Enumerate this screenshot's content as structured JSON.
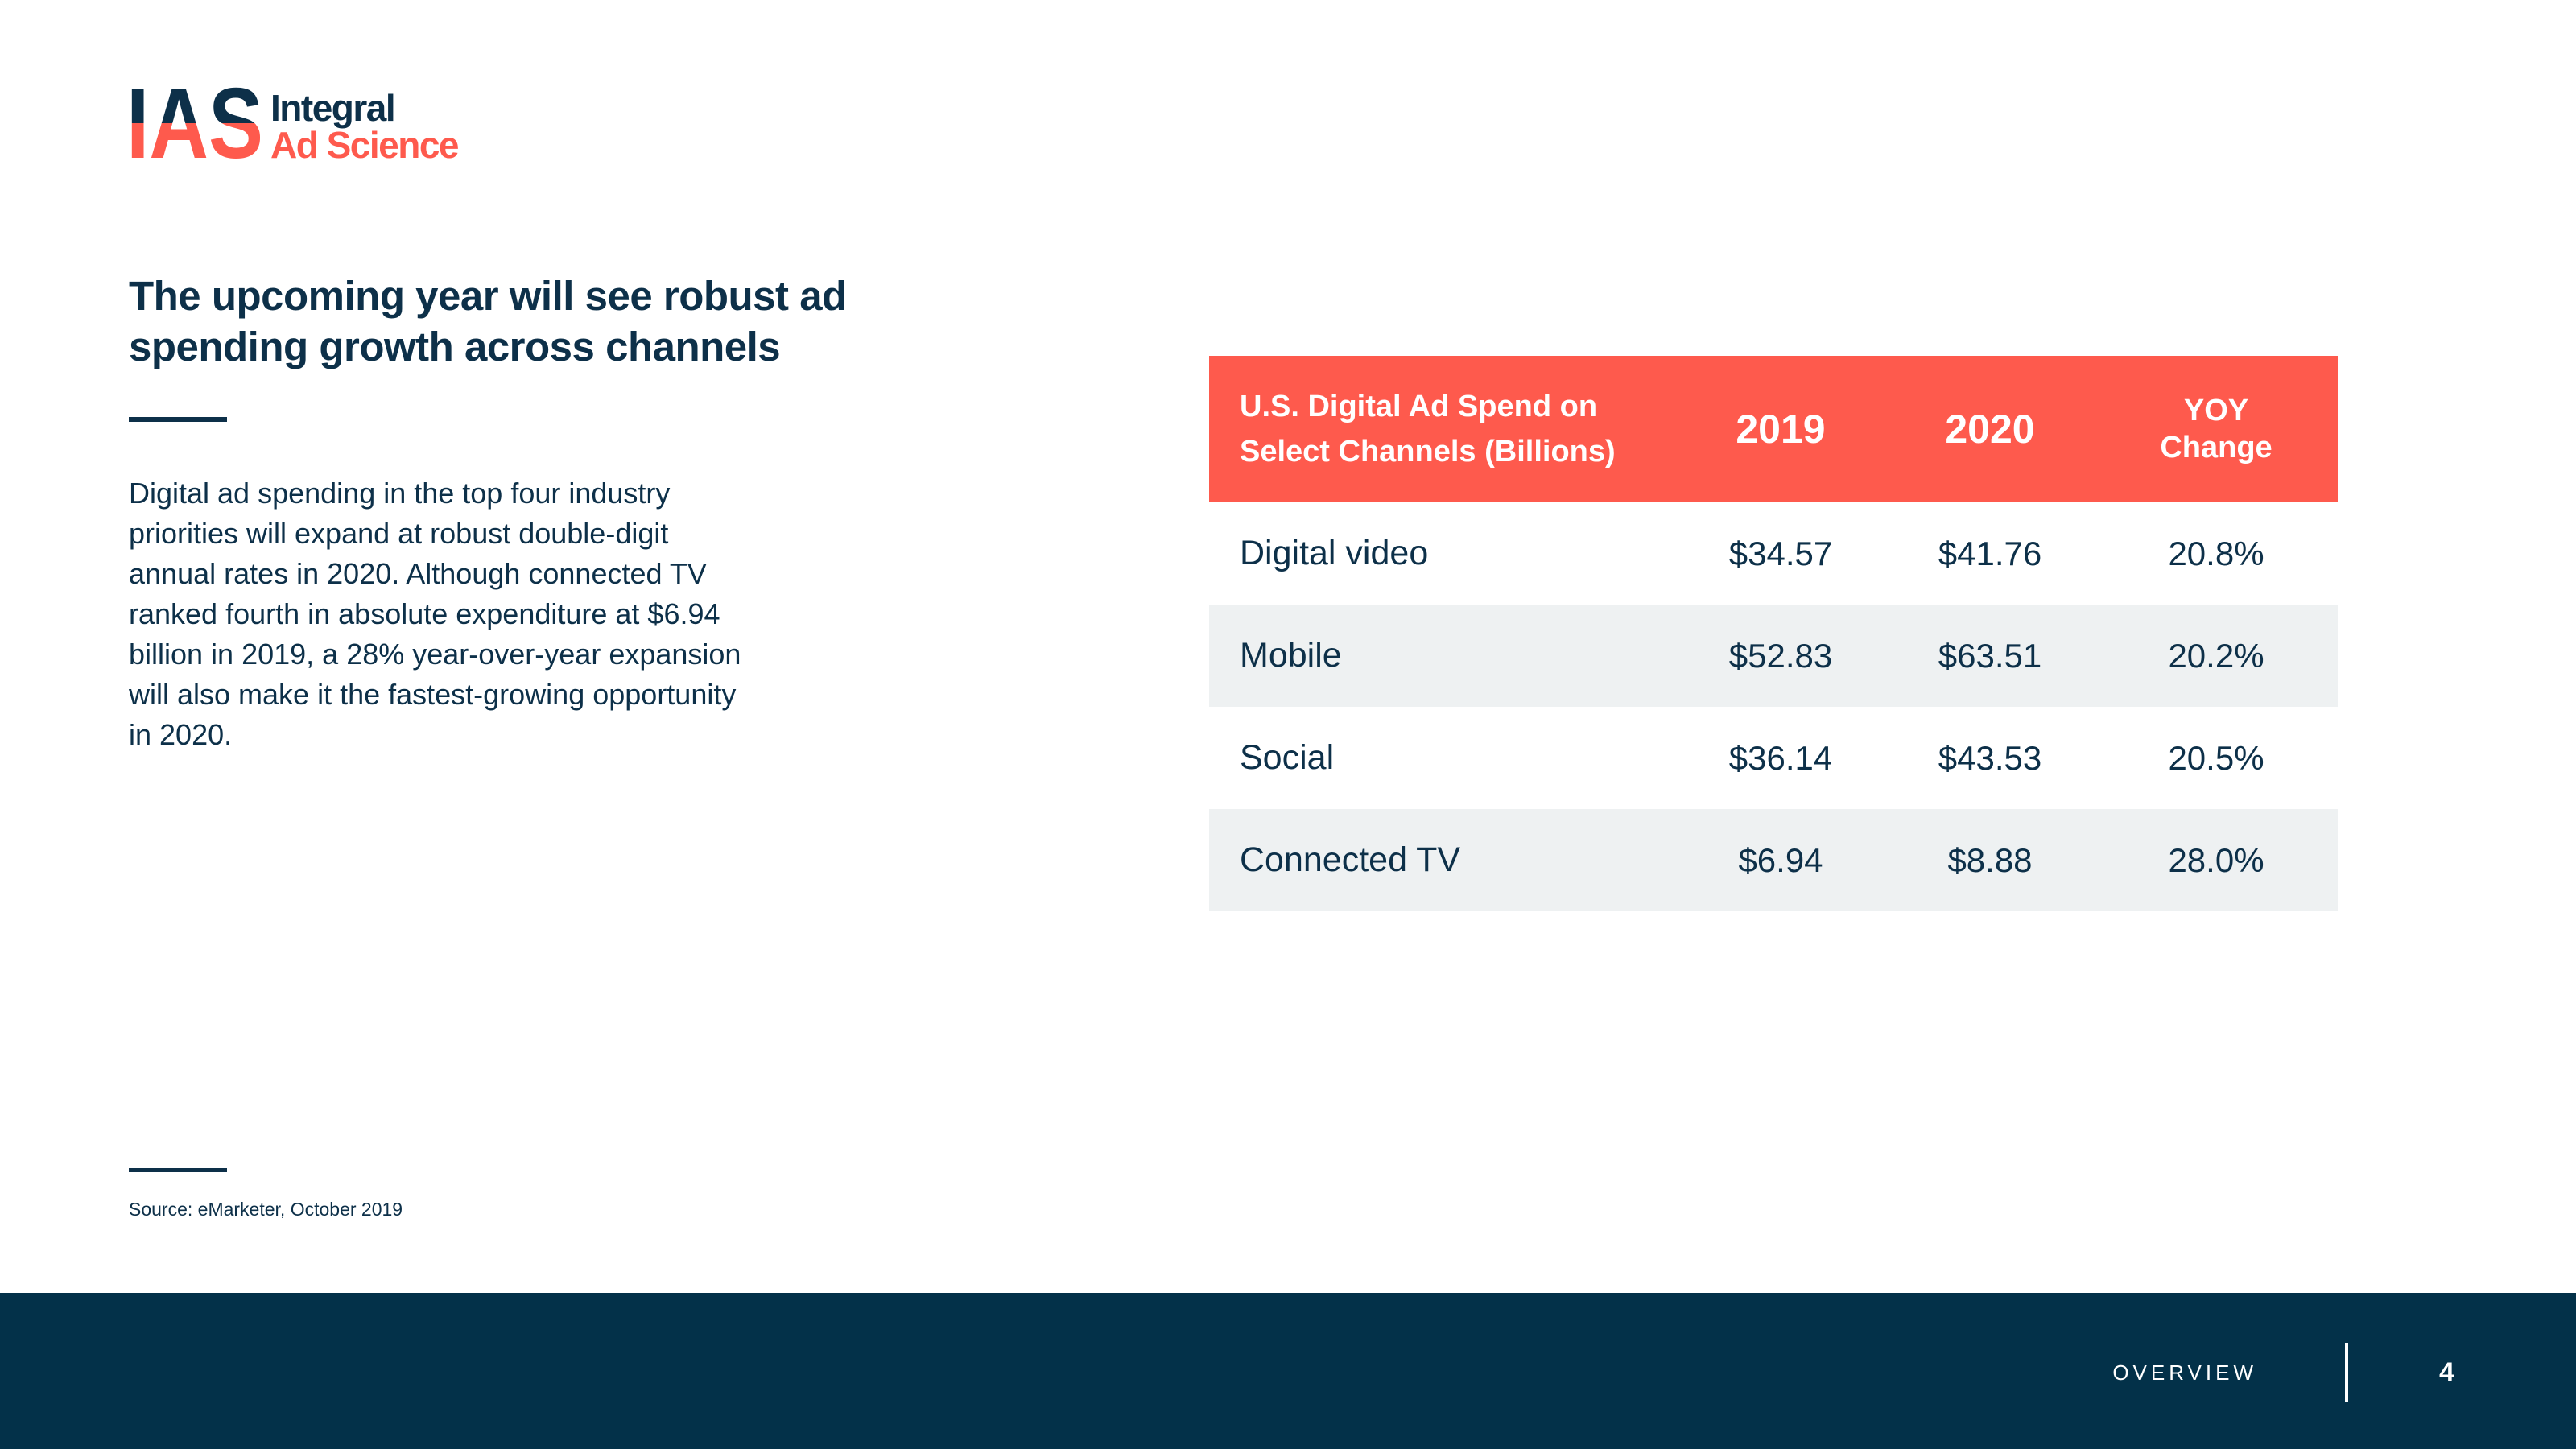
{
  "logo": {
    "mark": "IAS",
    "line1": "Integral",
    "line2": "Ad Science"
  },
  "headline": "The upcoming year will see robust ad spending growth across channels",
  "body": "Digital ad spending in the top four industry priorities will expand at robust double-digit annual rates in 2020. Although connected TV ranked fourth in absolute expenditure at $6.94 billion in 2019, a 28% year-over-year expansion will also make it the fastest-growing opportunity in 2020.",
  "source": "Source: eMarketer, October 2019",
  "table": {
    "header": {
      "title_line1": "U.S. Digital Ad Spend on",
      "title_line2": "Select Channels (Billions)",
      "col_2019": "2019",
      "col_2020": "2020",
      "col_yoy_line1": "YOY",
      "col_yoy_line2": "Change"
    },
    "rows": [
      {
        "channel": "Digital video",
        "y2019": "$34.57",
        "y2020": "$41.76",
        "yoy": "20.8%"
      },
      {
        "channel": "Mobile",
        "y2019": "$52.83",
        "y2020": "$63.51",
        "yoy": "20.2%"
      },
      {
        "channel": "Social",
        "y2019": "$36.14",
        "y2020": "$43.53",
        "yoy": "20.5%"
      },
      {
        "channel": "Connected TV",
        "y2019": "$6.94",
        "y2020": "$8.88",
        "yoy": "28.0%"
      }
    ]
  },
  "footer": {
    "section": "OVERVIEW",
    "page": "4"
  },
  "colors": {
    "navy": "#0d3049",
    "coral": "#fe5a4d",
    "footer_bg": "#033149",
    "row_shade": "#eef1f2"
  }
}
